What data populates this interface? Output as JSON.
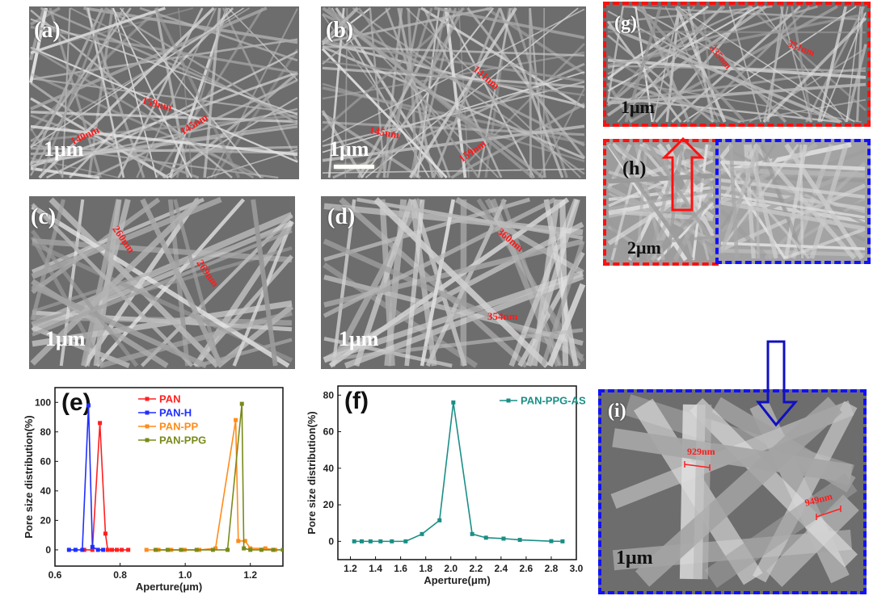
{
  "panels": {
    "a": {
      "label": "(a)",
      "scale": "1μm",
      "measurements": [
        "140nm",
        "159nm",
        "145nm"
      ]
    },
    "b": {
      "label": "(b)",
      "scale": "1μm",
      "measurements": [
        "141nm",
        "145nm",
        "159nm"
      ]
    },
    "c": {
      "label": "(c)",
      "scale": "1μm",
      "measurements": [
        "260nm",
        "269nm"
      ]
    },
    "d": {
      "label": "(d)",
      "scale": "1μm",
      "measurements": [
        "360nm",
        "354nm"
      ]
    },
    "g": {
      "label": "(g)",
      "scale": "1μm",
      "measurements": [
        "335nm",
        "351nm"
      ]
    },
    "h": {
      "label": "(h)",
      "scale": "2μm"
    },
    "i": {
      "label": "(i)",
      "scale": "1μm",
      "measurements": [
        "929nm",
        "949nm"
      ]
    }
  },
  "colors": {
    "highlight_red": "#ff1010",
    "highlight_blue": "#1010ff",
    "measurement": "#ff1a1a"
  },
  "chart_data": [
    {
      "panel_label": "(e)",
      "type": "line",
      "xlabel": "Aperture(μm)",
      "ylabel": "Pore size distribution(%)",
      "xlim": [
        0.6,
        1.3
      ],
      "ylim": [
        -11,
        110
      ],
      "xticks": [
        0.6,
        0.8,
        1.0,
        1.2
      ],
      "yticks": [
        0,
        20,
        40,
        60,
        80,
        100
      ],
      "grid": false,
      "legend": "top-center",
      "markers": "square",
      "series": [
        {
          "name": "PAN",
          "color": "#ff2020",
          "points": [
            [
              0.69,
              0
            ],
            [
              0.715,
              0
            ],
            [
              0.738,
              86
            ],
            [
              0.755,
              11
            ],
            [
              0.762,
              0
            ],
            [
              0.775,
              0
            ],
            [
              0.79,
              0
            ],
            [
              0.805,
              0
            ],
            [
              0.825,
              0
            ]
          ]
        },
        {
          "name": "PAN-H",
          "color": "#1f2fff",
          "points": [
            [
              0.643,
              0
            ],
            [
              0.663,
              0
            ],
            [
              0.684,
              0
            ],
            [
              0.703,
              98
            ],
            [
              0.715,
              2
            ],
            [
              0.732,
              0
            ],
            [
              0.748,
              0
            ]
          ]
        },
        {
          "name": "PAN-PP",
          "color": "#ff8c1a",
          "points": [
            [
              0.881,
              0
            ],
            [
              0.918,
              0
            ],
            [
              0.957,
              0
            ],
            [
              0.998,
              0
            ],
            [
              1.043,
              0
            ],
            [
              1.093,
              1
            ],
            [
              1.155,
              88
            ],
            [
              1.163,
              6
            ],
            [
              1.184,
              6
            ],
            [
              1.2,
              1
            ],
            [
              1.246,
              1
            ],
            [
              1.276,
              0
            ]
          ]
        },
        {
          "name": "PAN-PPG",
          "color": "#7a8a1a",
          "points": [
            [
              0.909,
              0
            ],
            [
              0.946,
              0
            ],
            [
              0.987,
              0
            ],
            [
              1.035,
              0
            ],
            [
              1.085,
              0
            ],
            [
              1.13,
              0
            ],
            [
              1.174,
              99
            ],
            [
              1.18,
              1
            ],
            [
              1.2,
              0
            ],
            [
              1.234,
              0
            ],
            [
              1.27,
              0
            ],
            [
              1.3,
              0
            ]
          ]
        }
      ]
    },
    {
      "panel_label": "(f)",
      "type": "line",
      "xlabel": "Aperture(μm)",
      "ylabel": "Pore size distribution(%)",
      "xlim": [
        1.1,
        3.0
      ],
      "ylim": [
        -10,
        85
      ],
      "xticks": [
        1.2,
        1.4,
        1.6,
        1.8,
        2.0,
        2.2,
        2.4,
        2.6,
        2.8,
        3.0
      ],
      "yticks": [
        0,
        20,
        40,
        60,
        80
      ],
      "grid": false,
      "legend": "top-right",
      "markers": "square",
      "series": [
        {
          "name": "PAN-PPG-AS",
          "color": "#1a8f86",
          "points": [
            [
              1.23,
              0
            ],
            [
              1.29,
              0
            ],
            [
              1.36,
              0
            ],
            [
              1.44,
              0
            ],
            [
              1.53,
              0
            ],
            [
              1.64,
              0
            ],
            [
              1.77,
              4
            ],
            [
              1.91,
              11.5
            ],
            [
              2.02,
              76
            ],
            [
              2.17,
              4
            ],
            [
              2.28,
              2
            ],
            [
              2.42,
              1.5
            ],
            [
              2.55,
              0.8
            ],
            [
              2.8,
              0.1
            ],
            [
              2.89,
              0
            ]
          ]
        }
      ]
    }
  ]
}
